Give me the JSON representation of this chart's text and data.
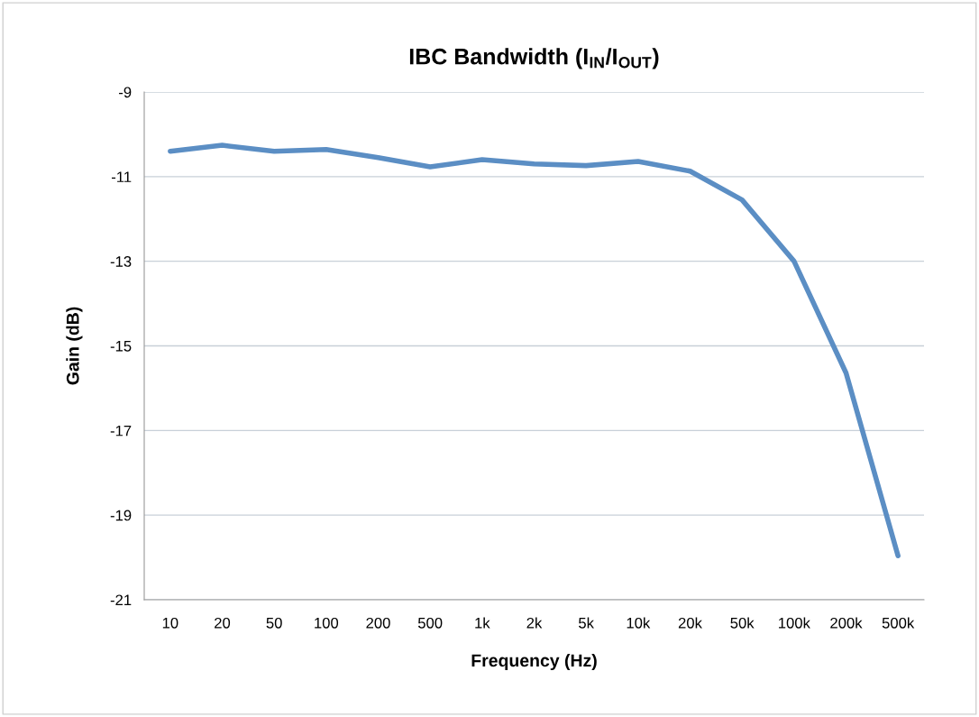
{
  "chart_data": {
    "type": "line",
    "title": "IBC Bandwidth (I$_{IN}$/I$_{OUT}$)",
    "xlabel": "Frequency (Hz)",
    "ylabel": "Gain (dB)",
    "categories": [
      "10",
      "20",
      "50",
      "100",
      "200",
      "500",
      "1k",
      "2k",
      "5k",
      "10k",
      "20k",
      "50k",
      "100k",
      "200k",
      "500k"
    ],
    "series": [
      {
        "color": "#5b8ec4",
        "values": [
          -10.4,
          -10.26,
          -10.4,
          -10.36,
          -10.55,
          -10.77,
          -10.6,
          -10.7,
          -10.74,
          -10.64,
          -10.87,
          -11.55,
          -13.0,
          -15.64,
          -19.96
        ]
      }
    ],
    "ylim": [
      -21,
      -9
    ],
    "yticks": [
      -21,
      -19,
      -17,
      -15,
      -13,
      -11,
      -9
    ],
    "grid": "y",
    "marker": "none",
    "line_style": "solid"
  }
}
